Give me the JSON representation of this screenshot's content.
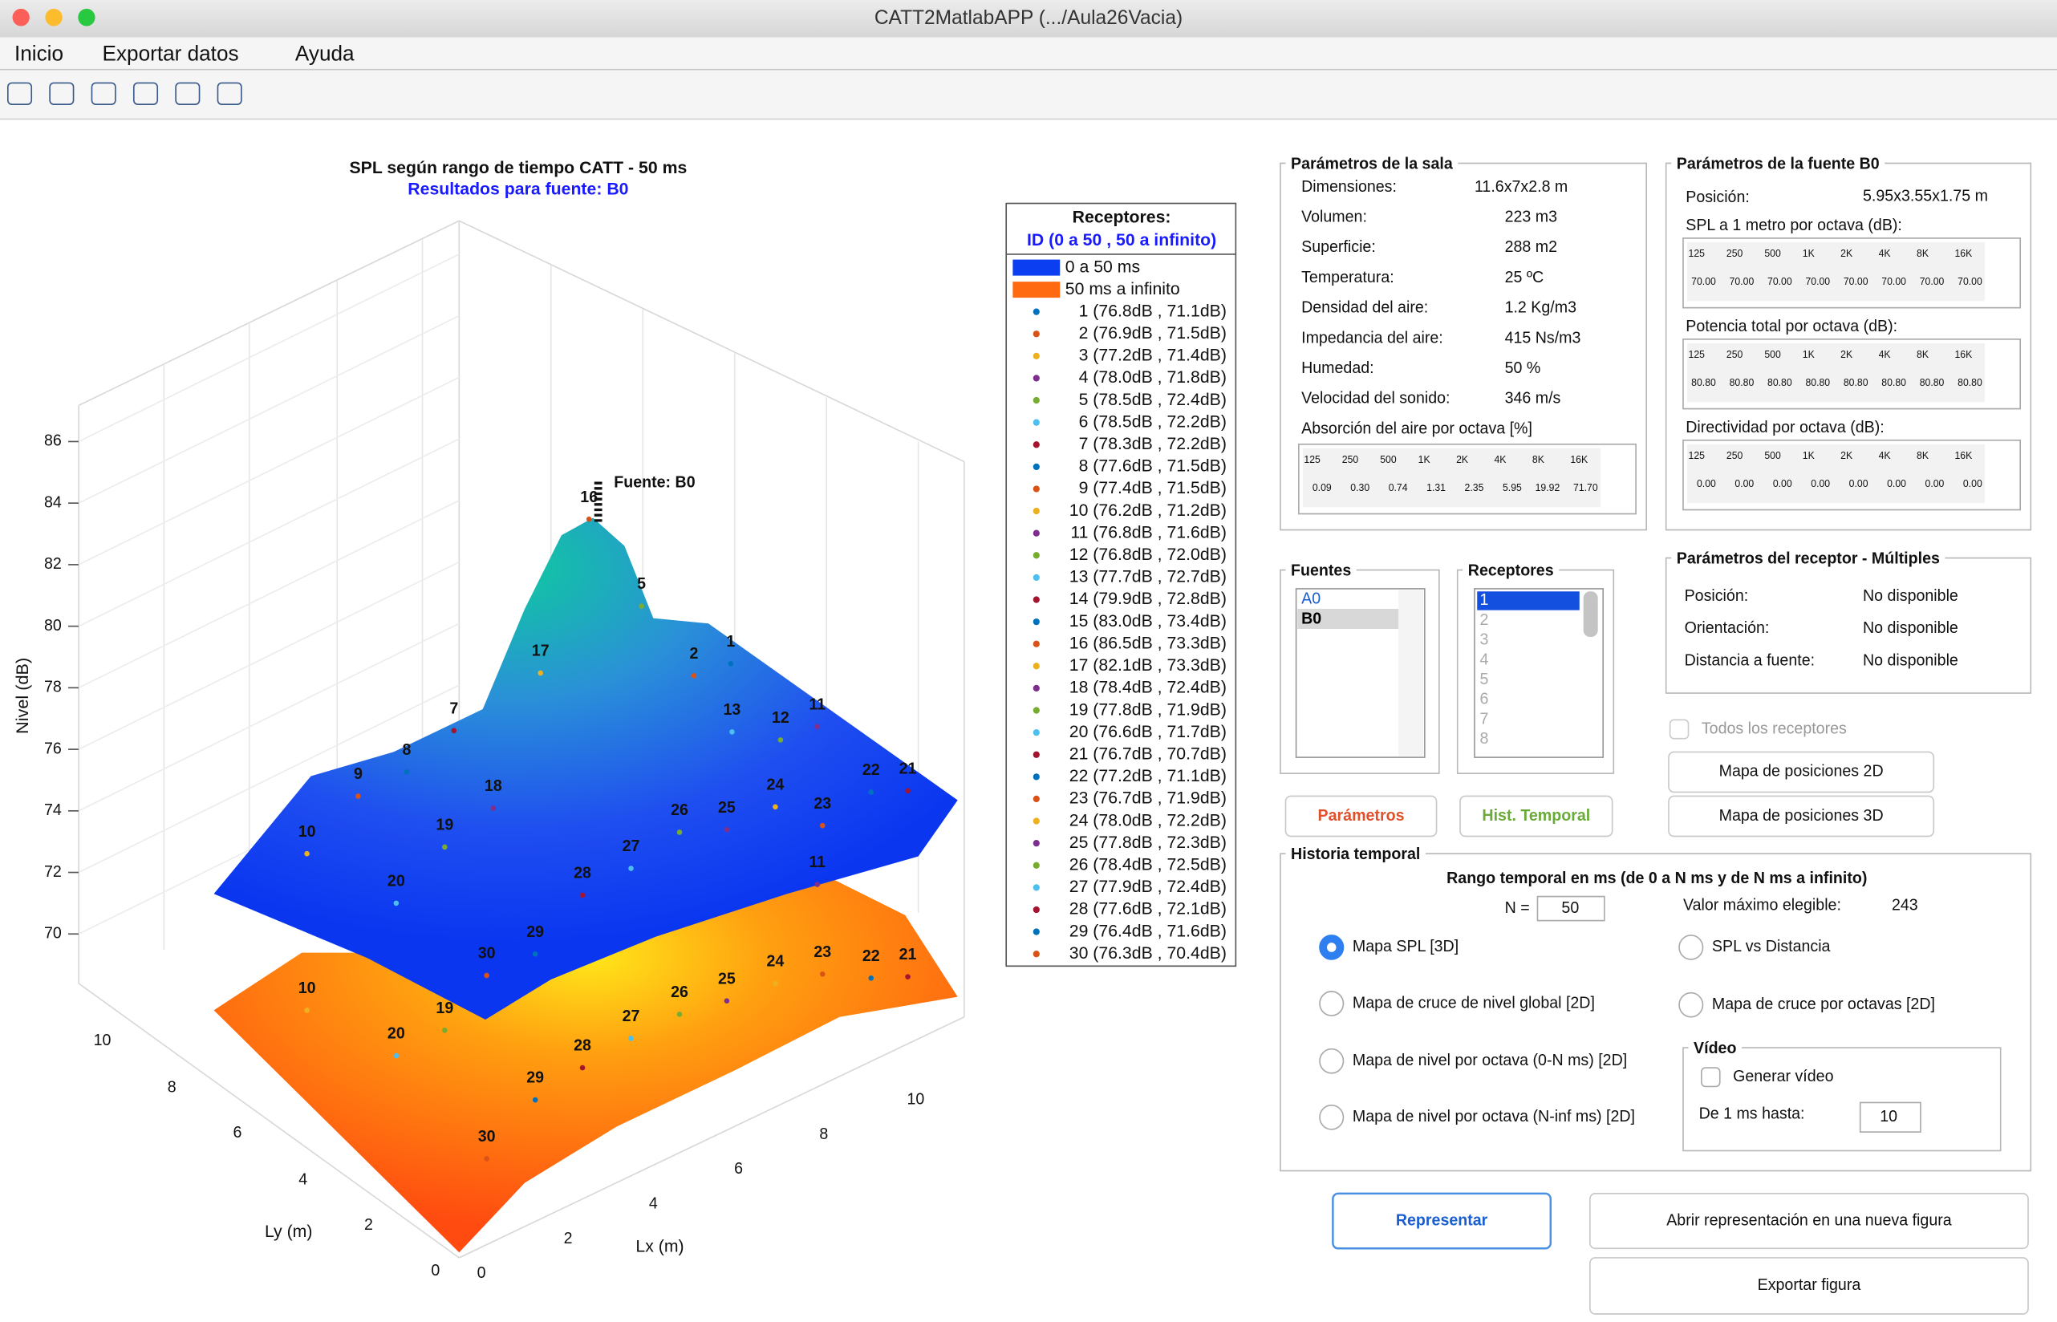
{
  "window_title": "CATT2MatlabAPP (.../Aula26Vacia)",
  "menu": [
    "Inicio",
    "Exportar datos",
    "Ayuda"
  ],
  "plot": {
    "title": "SPL según rango de tiempo CATT - 50 ms",
    "subtitle": "Resultados para fuente: B0",
    "zlabel": "Nivel (dB)",
    "xlabel": "Lx (m)",
    "ylabel": "Ly (m)",
    "zticks": [
      "70",
      "72",
      "74",
      "76",
      "78",
      "80",
      "82",
      "84",
      "86"
    ],
    "xticks": [
      "0",
      "2",
      "4",
      "6",
      "8",
      "10"
    ],
    "yticks": [
      "0",
      "2",
      "4",
      "6",
      "8",
      "10"
    ],
    "source_label": "Fuente: B0",
    "upper_labels": [
      "1",
      "2",
      "5",
      "7",
      "8",
      "9",
      "10",
      "11",
      "12",
      "13",
      "16",
      "17",
      "18",
      "19",
      "20",
      "21",
      "22",
      "23",
      "24",
      "25",
      "26",
      "27",
      "28",
      "29",
      "30"
    ],
    "lower_labels": [
      "10",
      "11",
      "19",
      "20",
      "21",
      "22",
      "23",
      "24",
      "25",
      "26",
      "27",
      "28",
      "29",
      "30"
    ],
    "legend": {
      "title": "Receptores:",
      "subtitle": "ID (0 a 50 , 50 a infinito)",
      "layers": [
        {
          "name": "0 a 50 ms",
          "color": "#0a3ef0"
        },
        {
          "name": "50 ms a infinito",
          "color": "#ff6a10"
        }
      ],
      "receiver_colors": [
        "#0072bd",
        "#d95319",
        "#edb120",
        "#7e2f8e",
        "#77ac30",
        "#4dbeee",
        "#a2142f"
      ],
      "receivers": [
        "1 (76.8dB , 71.1dB)",
        "2 (76.9dB , 71.5dB)",
        "3 (77.2dB , 71.4dB)",
        "4 (78.0dB , 71.8dB)",
        "5 (78.5dB , 72.4dB)",
        "6 (78.5dB , 72.2dB)",
        "7 (78.3dB , 72.2dB)",
        "8 (77.6dB , 71.5dB)",
        "9 (77.4dB , 71.5dB)",
        "10 (76.2dB , 71.2dB)",
        "11 (76.8dB , 71.6dB)",
        "12 (76.8dB , 72.0dB)",
        "13 (77.7dB , 72.7dB)",
        "14 (79.9dB , 72.8dB)",
        "15 (83.0dB , 73.4dB)",
        "16 (86.5dB , 73.3dB)",
        "17 (82.1dB , 73.3dB)",
        "18 (78.4dB , 72.4dB)",
        "19 (77.8dB , 71.9dB)",
        "20 (76.6dB , 71.7dB)",
        "21 (76.7dB , 70.7dB)",
        "22 (77.2dB , 71.1dB)",
        "23 (76.7dB , 71.9dB)",
        "24 (78.0dB , 72.2dB)",
        "25 (77.8dB , 72.3dB)",
        "26 (78.4dB , 72.5dB)",
        "27 (77.9dB , 72.4dB)",
        "28 (77.6dB , 72.1dB)",
        "29 (76.4dB , 71.6dB)",
        "30 (76.3dB , 70.4dB)"
      ]
    }
  },
  "octave_bands": [
    "125",
    "250",
    "500",
    "1K",
    "2K",
    "4K",
    "8K",
    "16K"
  ],
  "room": {
    "title": "Parámetros de la sala",
    "rows": [
      [
        "Dimensiones:",
        "11.6x7x2.8 m"
      ],
      [
        "Volumen:",
        "223 m3"
      ],
      [
        "Superficie:",
        "288 m2"
      ],
      [
        "Temperatura:",
        "25 ºC"
      ],
      [
        "Densidad del aire:",
        "1.2 Kg/m3"
      ],
      [
        "Impedancia del aire:",
        "415 Ns/m3"
      ],
      [
        "Humedad:",
        "50 %"
      ],
      [
        "Velocidad del sonido:",
        "346 m/s"
      ]
    ],
    "absorption_label": "Absorción del aire por octava [%]",
    "absorption_values": [
      "0.09",
      "0.30",
      "0.74",
      "1.31",
      "2.35",
      "5.95",
      "19.92",
      "71.70"
    ]
  },
  "source_params": {
    "title": "Parámetros de la fuente B0",
    "position_label": "Posición:",
    "position": "5.95x3.55x1.75 m",
    "tables": [
      {
        "label": "SPL a 1 metro por octava (dB):",
        "values": [
          "70.00",
          "70.00",
          "70.00",
          "70.00",
          "70.00",
          "70.00",
          "70.00",
          "70.00"
        ]
      },
      {
        "label": "Potencia total por octava (dB):",
        "values": [
          "80.80",
          "80.80",
          "80.80",
          "80.80",
          "80.80",
          "80.80",
          "80.80",
          "80.80"
        ]
      },
      {
        "label": "Directividad por octava (dB):",
        "values": [
          "0.00",
          "0.00",
          "0.00",
          "0.00",
          "0.00",
          "0.00",
          "0.00",
          "0.00"
        ]
      }
    ]
  },
  "lists": {
    "sources_title": "Fuentes",
    "sources": [
      "A0",
      "B0"
    ],
    "receivers_title": "Receptores",
    "receivers": [
      "1",
      "2",
      "3",
      "4",
      "5",
      "6",
      "7",
      "8"
    ]
  },
  "receiver_params": {
    "title": "Parámetros del receptor - Múltiples",
    "rows": [
      [
        "Posición:",
        "No disponible"
      ],
      [
        "Orientación:",
        "No disponible"
      ],
      [
        "Distancia a fuente:",
        "No disponible"
      ]
    ]
  },
  "all_receivers": "Todos los receptores",
  "map2d": "Mapa de posiciones 2D",
  "map3d": "Mapa de posiciones 3D",
  "btn_params": "Parámetros",
  "btn_hist": "Hist. Temporal",
  "history": {
    "title": "Historia temporal",
    "range_label": "Rango temporal en ms (de 0 a N ms y de N ms a infinito)",
    "n_label": "N =",
    "n_value": "50",
    "max_label": "Valor máximo elegible:",
    "max_value": "243",
    "options_left": [
      "Mapa SPL [3D]",
      "Mapa de cruce de nivel global [2D]",
      "Mapa de nivel por octava (0-N ms) [2D]",
      "Mapa de nivel por octava (N-inf ms) [2D]"
    ],
    "options_right": [
      "SPL vs Distancia",
      "Mapa de cruce por octavas [2D]"
    ],
    "video": {
      "title": "Vídeo",
      "generate": "Generar vídeo",
      "until_label": "De 1 ms hasta:",
      "until_value": "10"
    }
  },
  "buttons": {
    "represent": "Representar",
    "open_new": "Abrir representación en una nueva figura",
    "export": "Exportar figura"
  }
}
